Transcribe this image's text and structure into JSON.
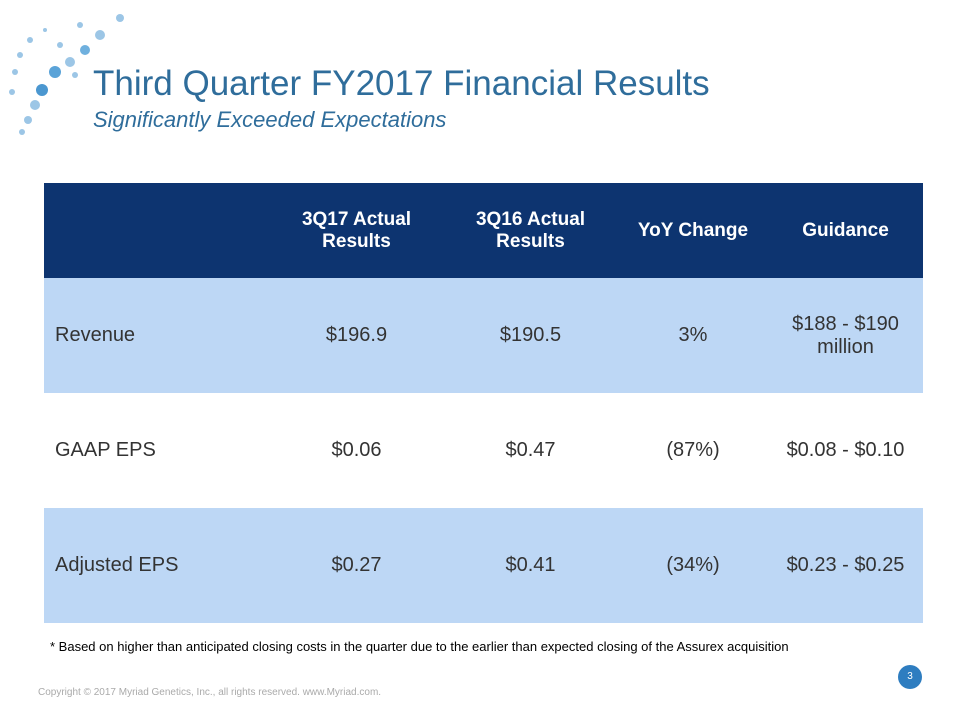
{
  "header": {
    "title": "Third Quarter FY2017 Financial Results",
    "subtitle": "Significantly Exceeded Expectations"
  },
  "table": {
    "columns": [
      "3Q17 Actual Results",
      "3Q16 Actual Results",
      "YoY Change",
      "Guidance"
    ],
    "rows": [
      [
        "Revenue",
        "$196.9",
        "$190.5",
        "3%",
        "$188 - $190 million"
      ],
      [
        "GAAP EPS",
        "$0.06",
        "$0.47",
        "(87%)",
        "$0.08 - $0.10"
      ],
      [
        "Adjusted EPS",
        "$0.27",
        "$0.41",
        "(34%)",
        "$0.23 - $0.25"
      ]
    ]
  },
  "footnote": "* Based on higher than anticipated closing costs in the quarter due to the earlier than expected closing of the Assurex acquisition",
  "footer": {
    "copyright": "Copyright © 2017 Myriad Genetics, Inc., all rights reserved.  www.Myriad.com.",
    "page_number": "3"
  }
}
